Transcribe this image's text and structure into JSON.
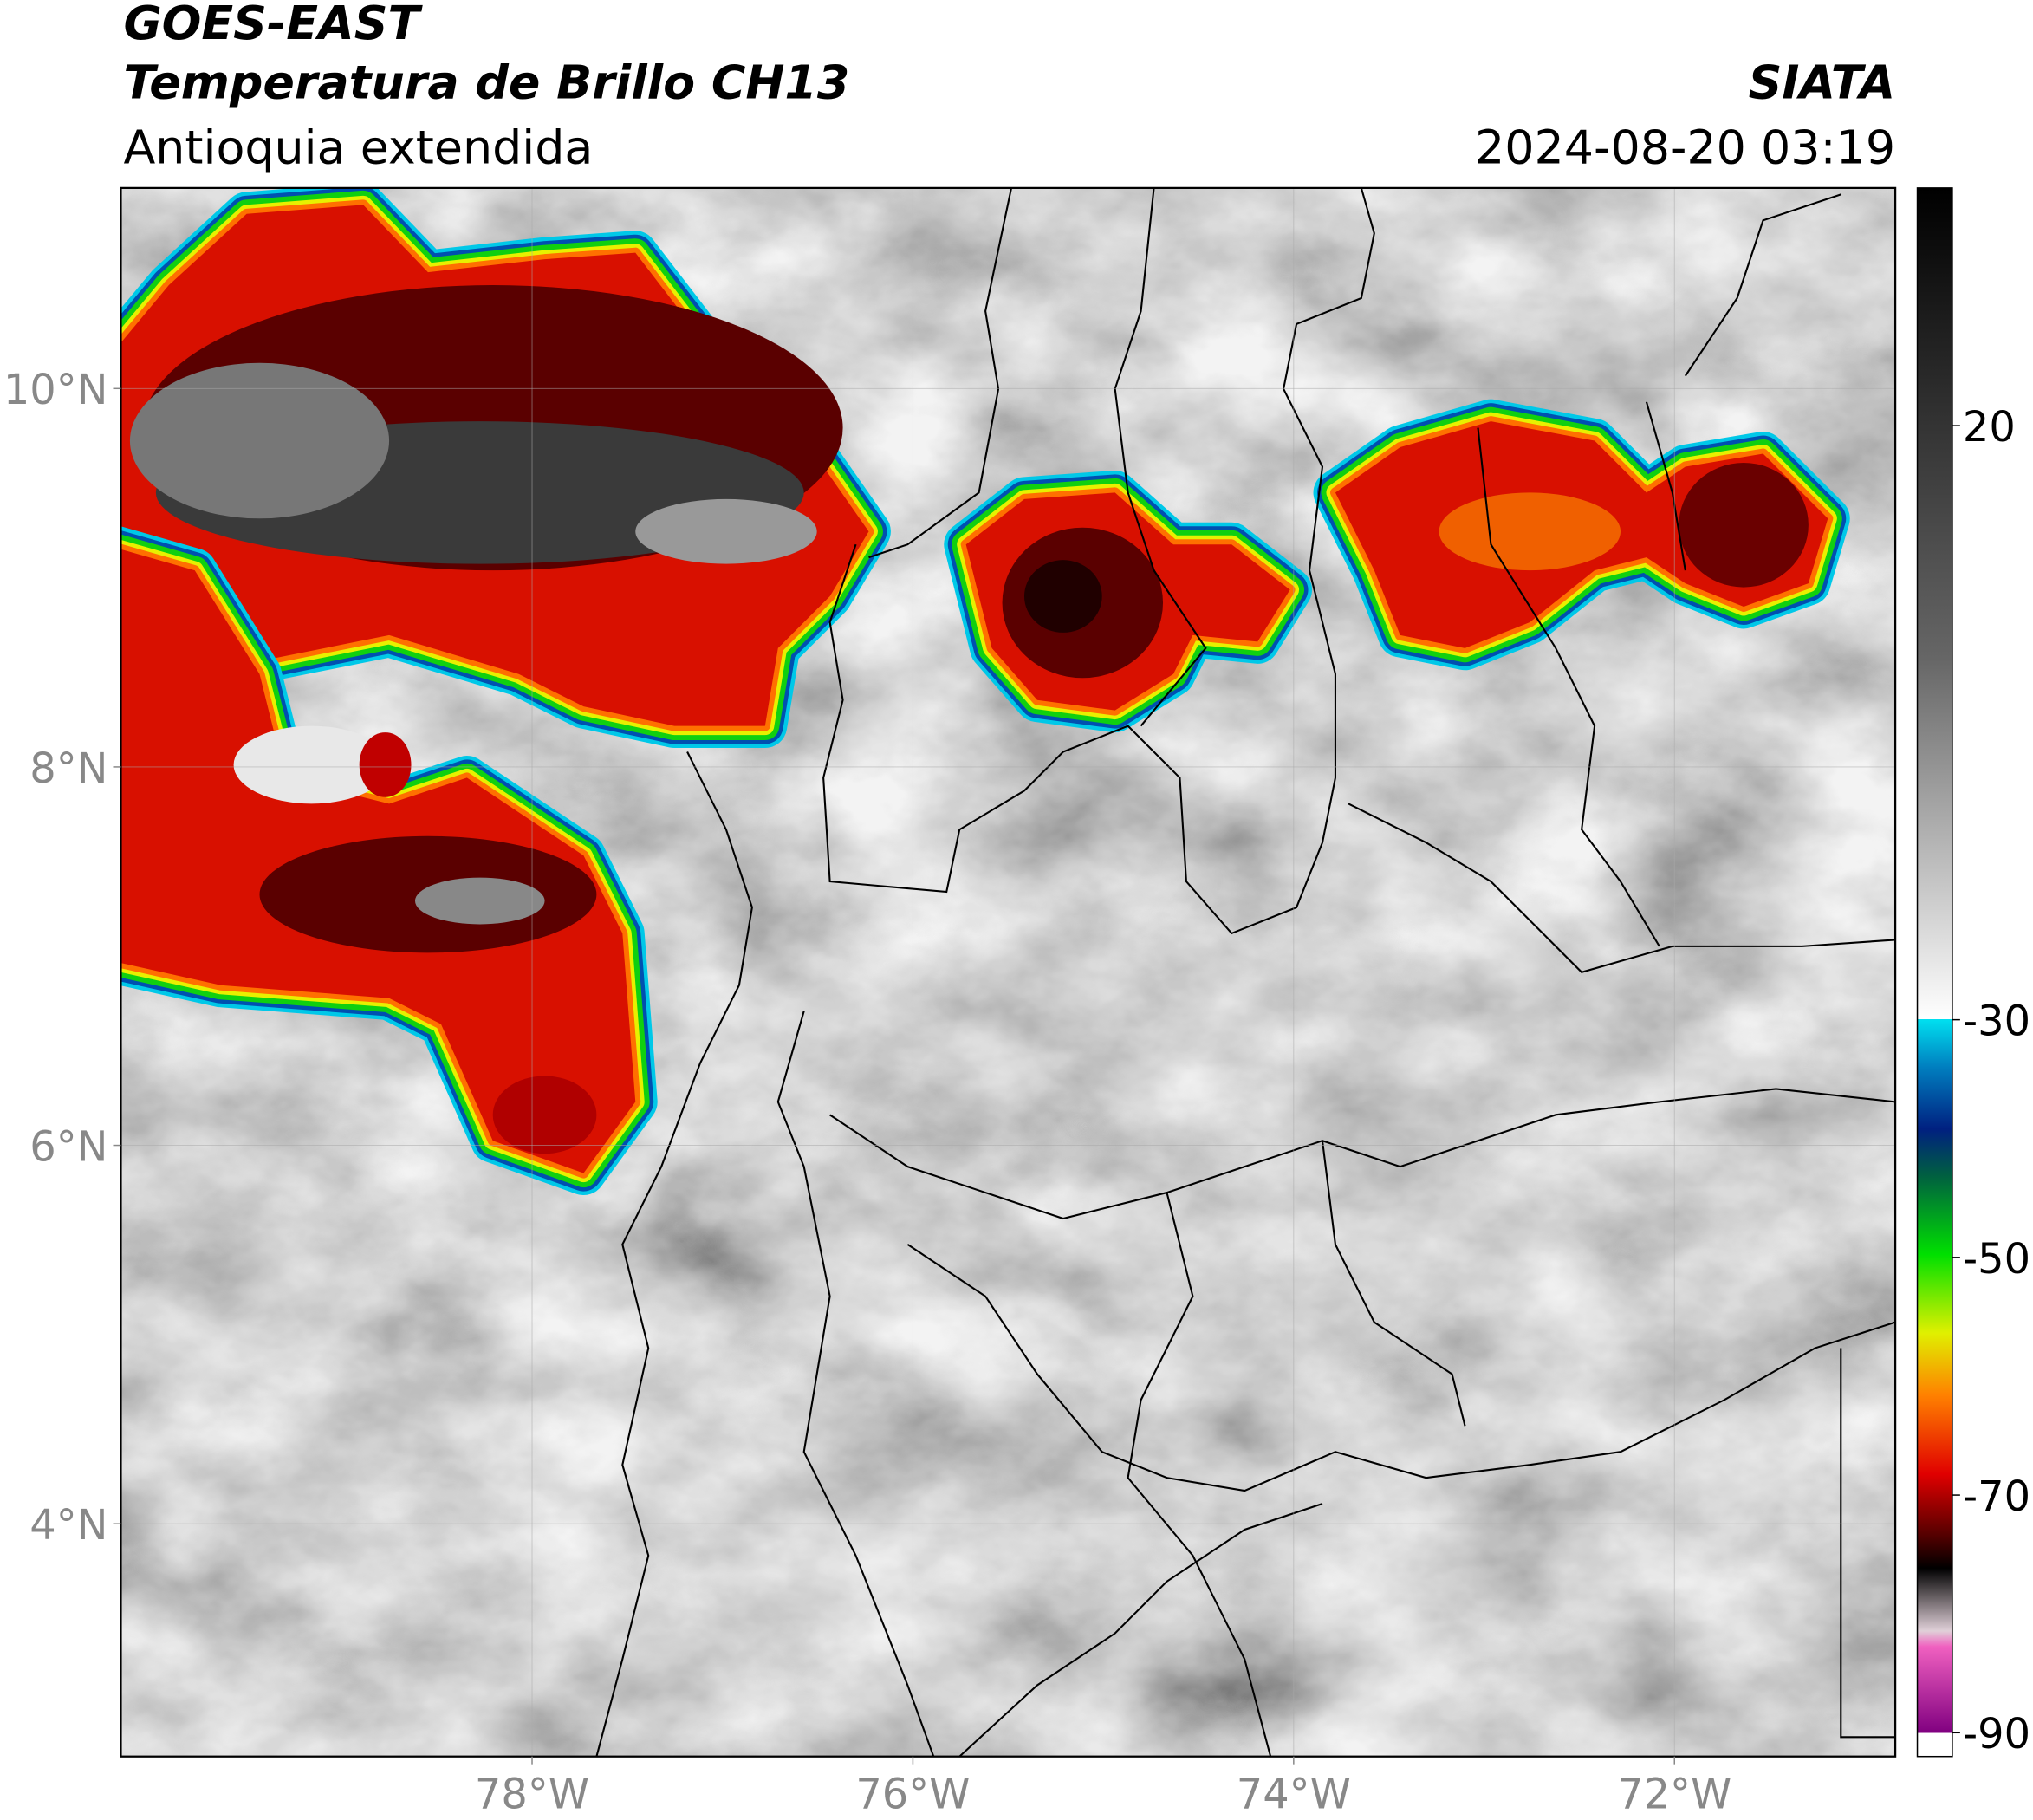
{
  "header": {
    "title": "GOES-EAST",
    "subtitle": "Temperatura de Brillo CH13",
    "region": "Antioquia extendida",
    "source": "SIATA",
    "datetime": "2024-08-20 03:19"
  },
  "map": {
    "xlim": [
      -80.16,
      -70.84
    ],
    "ylim": [
      2.77,
      11.06
    ],
    "xticks": [
      {
        "value": -78,
        "label": "78°W"
      },
      {
        "value": -76,
        "label": "76°W"
      },
      {
        "value": -74,
        "label": "74°W"
      },
      {
        "value": -72,
        "label": "72°W"
      }
    ],
    "yticks": [
      {
        "value": 10,
        "label": "10°N"
      },
      {
        "value": 8,
        "label": "8°N"
      },
      {
        "value": 6,
        "label": "6°N"
      },
      {
        "value": 4,
        "label": "4°N"
      }
    ],
    "grid": true
  },
  "colorbar": {
    "ylim": [
      -92,
      40
    ],
    "yticks": [
      20,
      -30,
      -50,
      -70,
      -90
    ]
  }
}
